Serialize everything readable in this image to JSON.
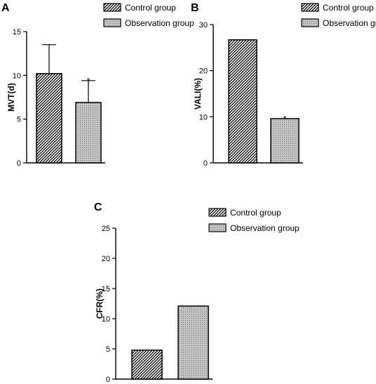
{
  "chart_data": [
    {
      "type": "bar",
      "panel": "A",
      "ylabel": "MVT(d)",
      "ylim": [
        0,
        15
      ],
      "yticks": [
        0,
        5,
        10,
        15
      ],
      "series": [
        {
          "name": "Control group",
          "value": 10.2,
          "error": 3.3,
          "pattern": "hatch",
          "sig": ""
        },
        {
          "name": "Observation group",
          "value": 6.9,
          "error": 2.5,
          "pattern": "dots",
          "sig": "*"
        }
      ]
    },
    {
      "type": "bar",
      "panel": "B",
      "ylabel": "VALI(%)",
      "ylim": [
        0,
        30
      ],
      "yticks": [
        0,
        10,
        20,
        30
      ],
      "series": [
        {
          "name": "Control group",
          "value": 26.7,
          "error": 0,
          "pattern": "hatch",
          "sig": ""
        },
        {
          "name": "Observation group",
          "value": 9.6,
          "error": 0,
          "pattern": "dots",
          "sig": "*"
        }
      ]
    },
    {
      "type": "bar",
      "panel": "C",
      "ylabel": "CFR(%)",
      "ylim": [
        0,
        25
      ],
      "yticks": [
        0,
        5,
        10,
        15,
        20,
        25
      ],
      "series": [
        {
          "name": "Control group",
          "value": 4.8,
          "error": 0,
          "pattern": "hatch",
          "sig": ""
        },
        {
          "name": "Observation group",
          "value": 12.1,
          "error": 0,
          "pattern": "dots",
          "sig": ""
        }
      ]
    }
  ]
}
